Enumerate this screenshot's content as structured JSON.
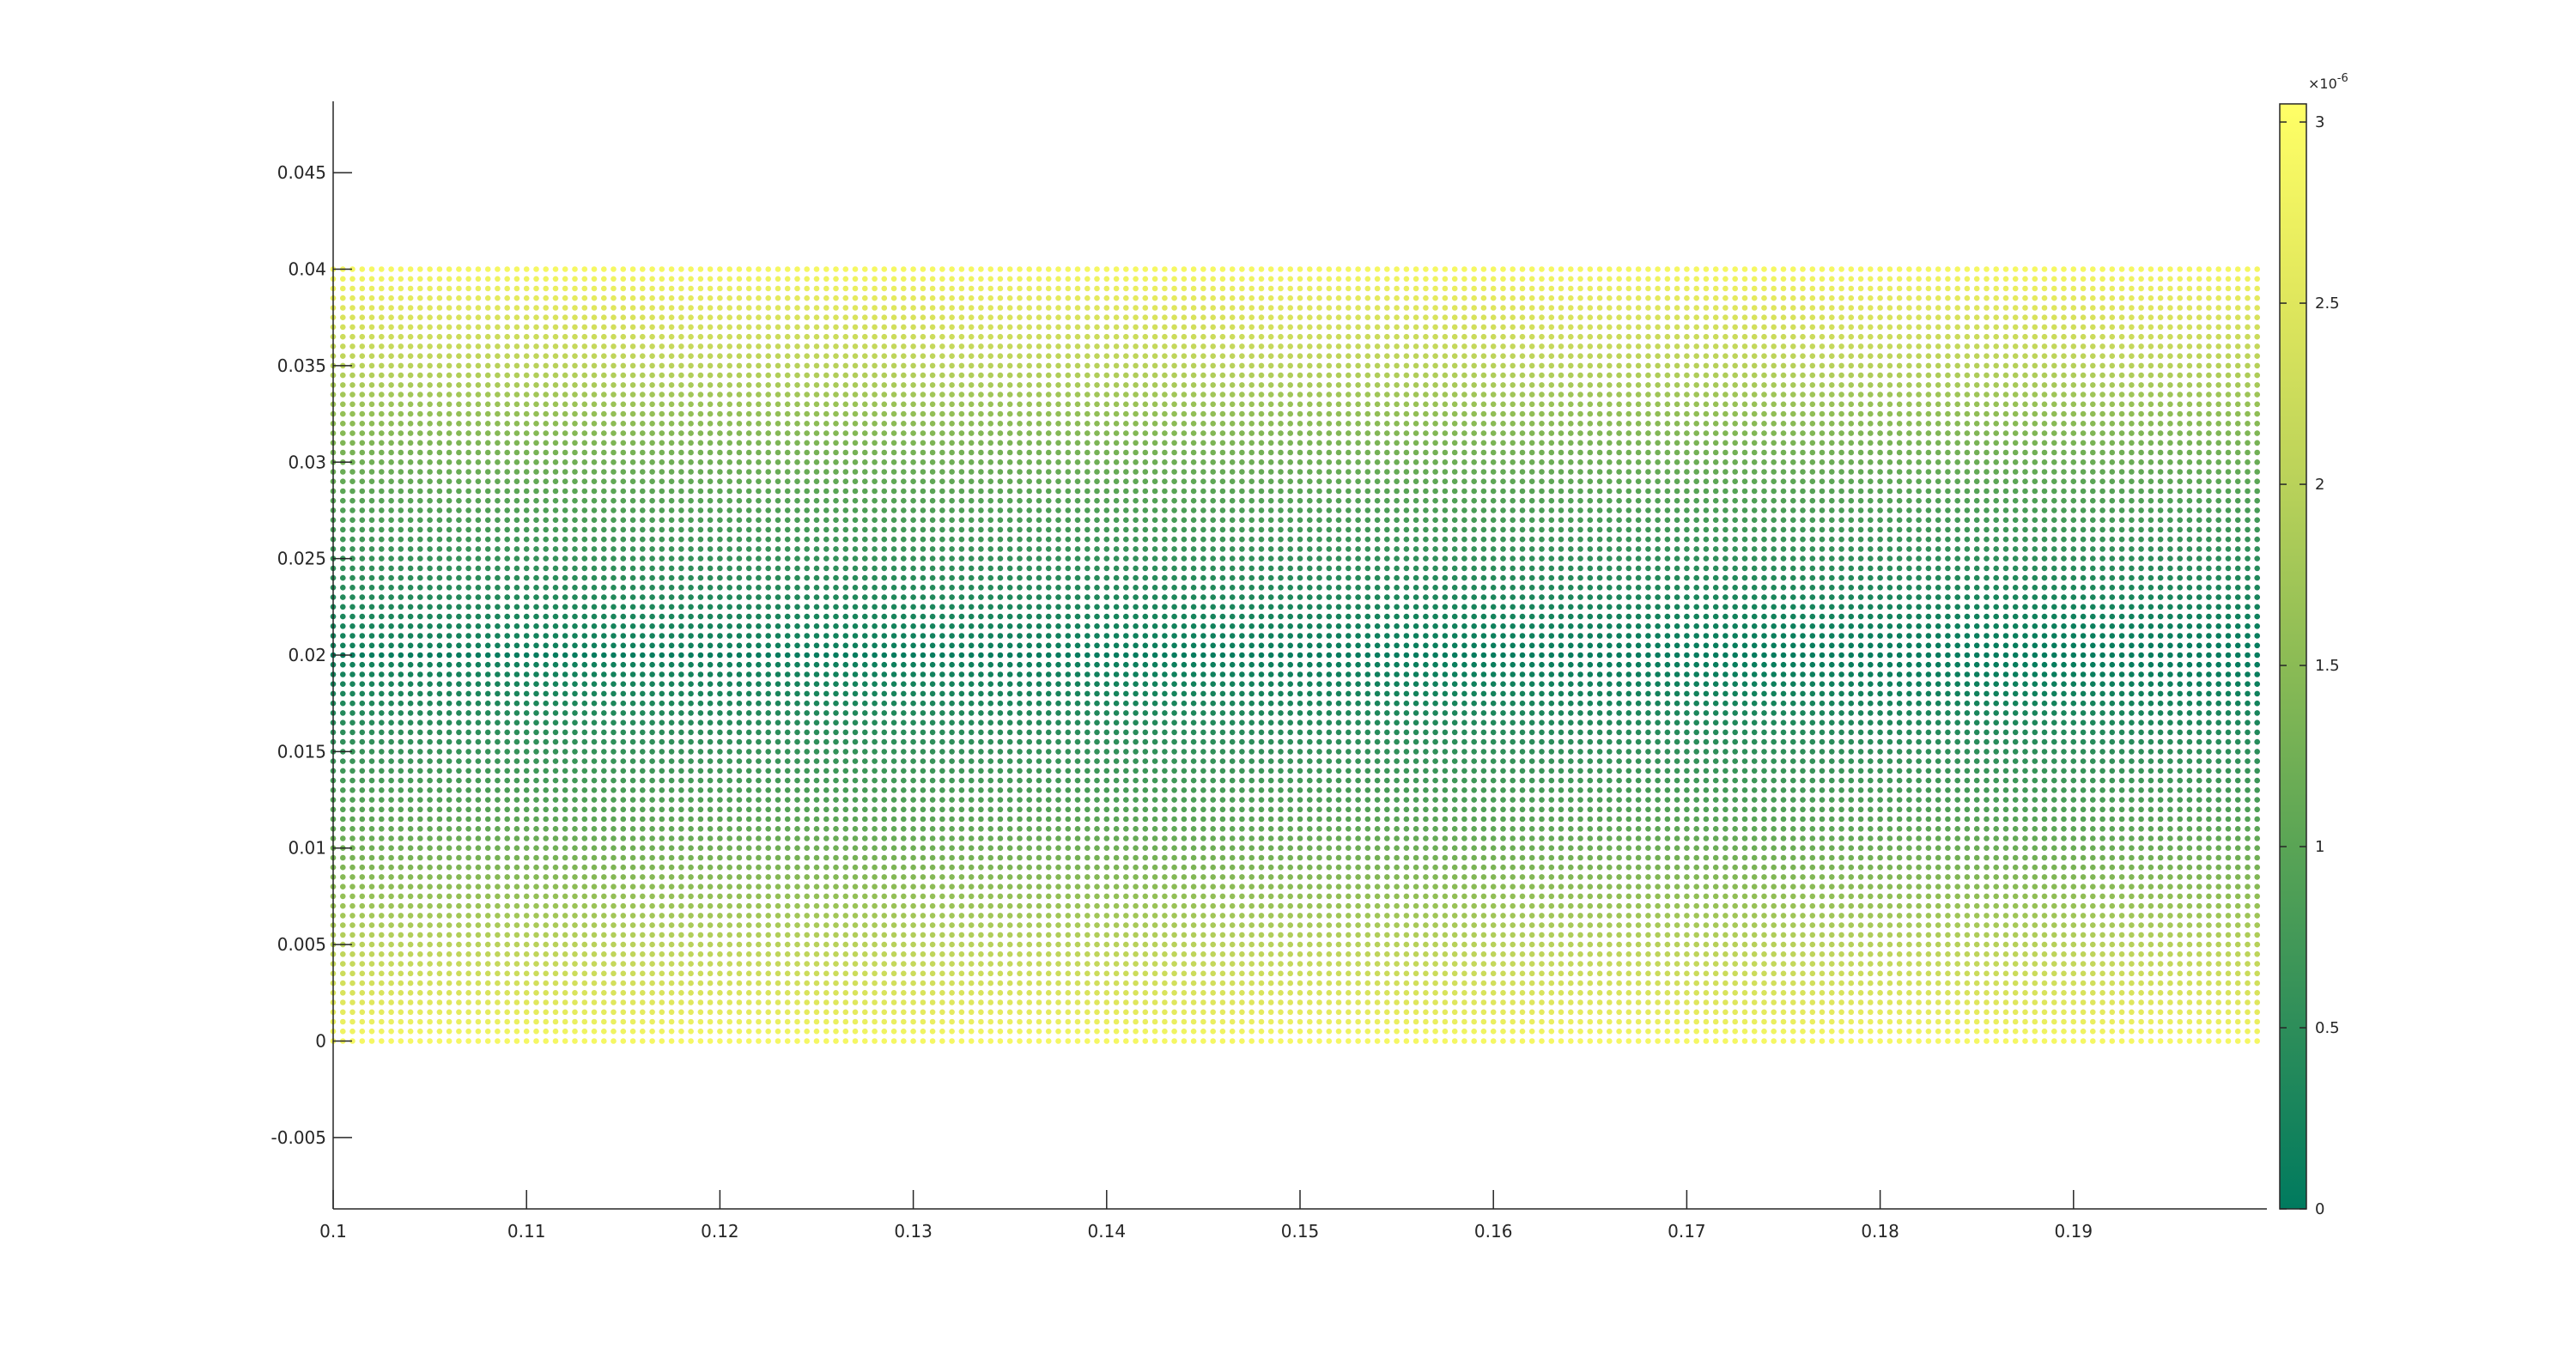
{
  "chart_data": {
    "type": "scatter",
    "title": "",
    "xlabel": "",
    "ylabel": "",
    "xlim": [
      0.1,
      0.2
    ],
    "ylim": [
      -0.0087,
      0.0487
    ],
    "x_ticks": [
      "0.1",
      "0.11",
      "0.12",
      "0.13",
      "0.14",
      "0.15",
      "0.16",
      "0.17",
      "0.18",
      "0.19"
    ],
    "x_tick_values": [
      0.1,
      0.11,
      0.12,
      0.13,
      0.14,
      0.15,
      0.16,
      0.17,
      0.18,
      0.19
    ],
    "y_ticks": [
      "-0.005",
      "0",
      "0.005",
      "0.01",
      "0.015",
      "0.02",
      "0.025",
      "0.03",
      "0.035",
      "0.04",
      "0.045"
    ],
    "y_tick_values": [
      -0.005,
      0,
      0.005,
      0.01,
      0.015,
      0.02,
      0.025,
      0.03,
      0.035,
      0.04,
      0.045
    ],
    "grid": false,
    "grid_points": {
      "x_range": [
        0.1,
        0.2
      ],
      "y_range": [
        0,
        0.04
      ],
      "x_count": 201,
      "y_count": 81
    },
    "color_field": {
      "description_of_values": "value grows with distance from y = 0.02; smallest along centre line, largest at y = 0 and y = 0.04",
      "min": 0,
      "max": 3.05e-06
    },
    "colorbar": {
      "limits": [
        0,
        3.05e-06
      ],
      "ticks": [
        "0",
        "0.5",
        "1",
        "1.5",
        "2",
        "2.5",
        "3"
      ],
      "tick_values": [
        0,
        0.5,
        1,
        1.5,
        2,
        2.5,
        3
      ],
      "exponent_label": "×10",
      "exponent": "-6",
      "colormap": [
        "#007a5e",
        "#2e8e5a",
        "#5ba555",
        "#8dbc55",
        "#bcd35a",
        "#e2e85d",
        "#ffff66"
      ]
    }
  }
}
